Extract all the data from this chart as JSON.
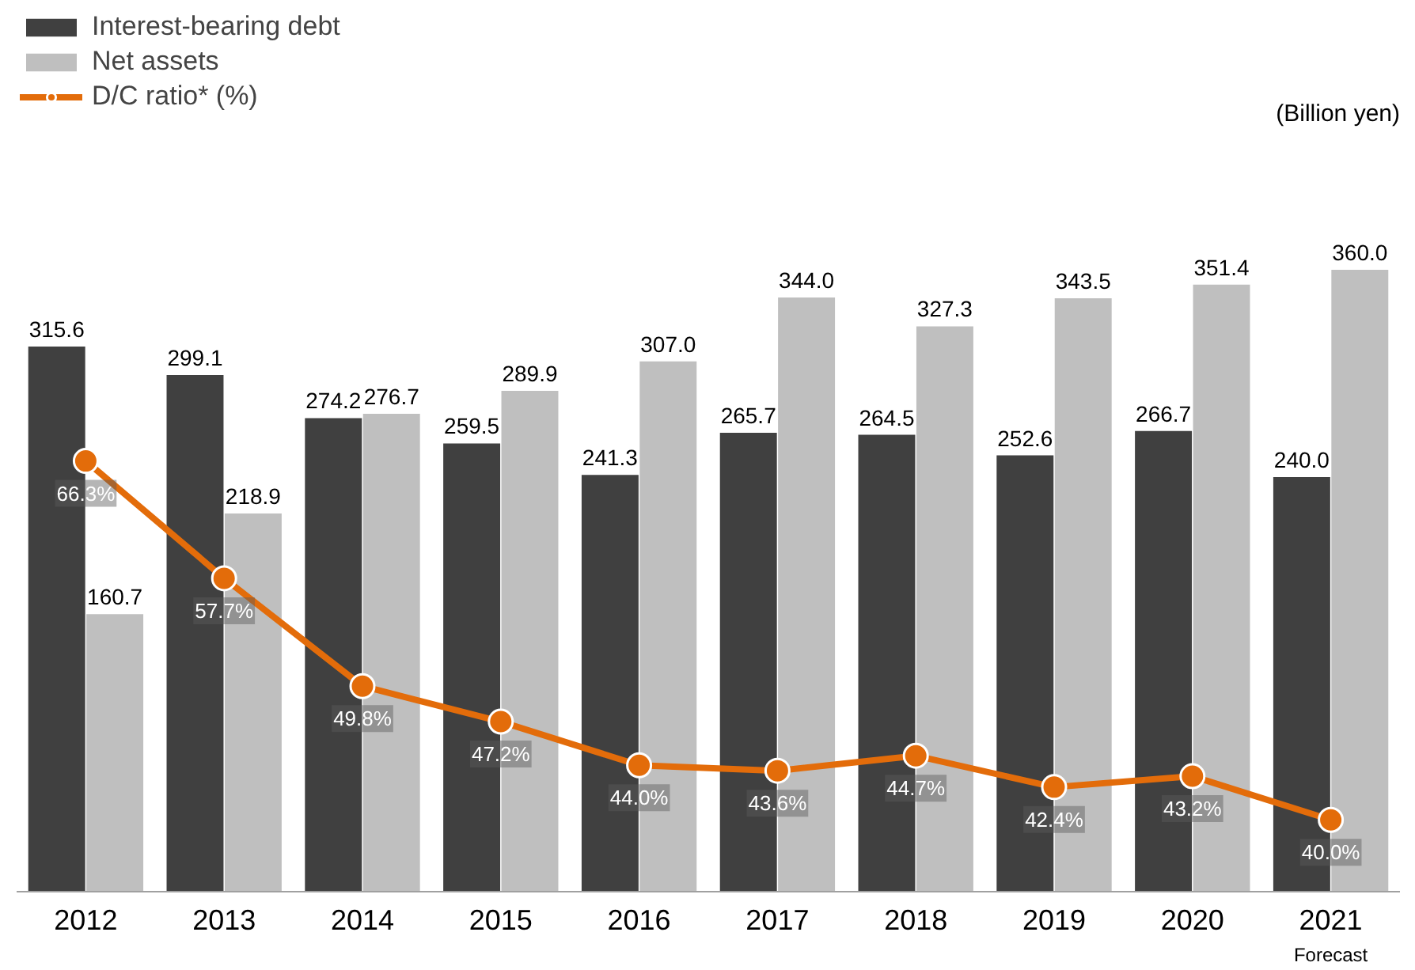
{
  "chart_data": {
    "type": "bar",
    "categories": [
      "2012",
      "2013",
      "2014",
      "2015",
      "2016",
      "2017",
      "2018",
      "2019",
      "2020",
      "2021"
    ],
    "series": [
      {
        "name": "Interest-bearing debt",
        "color": "#404040",
        "values": [
          315.6,
          299.1,
          274.2,
          259.5,
          241.3,
          265.7,
          264.5,
          252.6,
          266.7,
          240.0
        ],
        "value_labels": [
          "315.6",
          "299.1",
          "274.2",
          "259.5",
          "241.3",
          "265.7",
          "264.5",
          "252.6",
          "266.7",
          "240.0"
        ]
      },
      {
        "name": "Net assets",
        "color": "#bfbfbf",
        "values": [
          160.7,
          218.9,
          276.7,
          289.9,
          307.0,
          344.0,
          327.3,
          343.5,
          351.4,
          360.0
        ],
        "value_labels": [
          "160.7",
          "218.9",
          "276.7",
          "289.9",
          "307.0",
          "344.0",
          "327.3",
          "343.5",
          "351.4",
          "360.0"
        ]
      },
      {
        "name": "D/C ratio* (%)",
        "type": "line",
        "axis": "y2",
        "color": "#e36c0a",
        "values": [
          66.3,
          57.7,
          49.8,
          47.2,
          44.0,
          43.6,
          44.7,
          42.4,
          43.2,
          40.0
        ],
        "value_labels": [
          "66.3%",
          "57.7%",
          "49.8%",
          "47.2%",
          "44.0%",
          "43.6%",
          "44.7%",
          "42.4%",
          "43.2%",
          "40.0%"
        ]
      }
    ],
    "marker": "circle",
    "line_style": "solid",
    "grid": false,
    "legend": "top left",
    "tick_labels": "x",
    "annotations": [
      "(Billion yen)",
      "Forecast"
    ]
  }
}
